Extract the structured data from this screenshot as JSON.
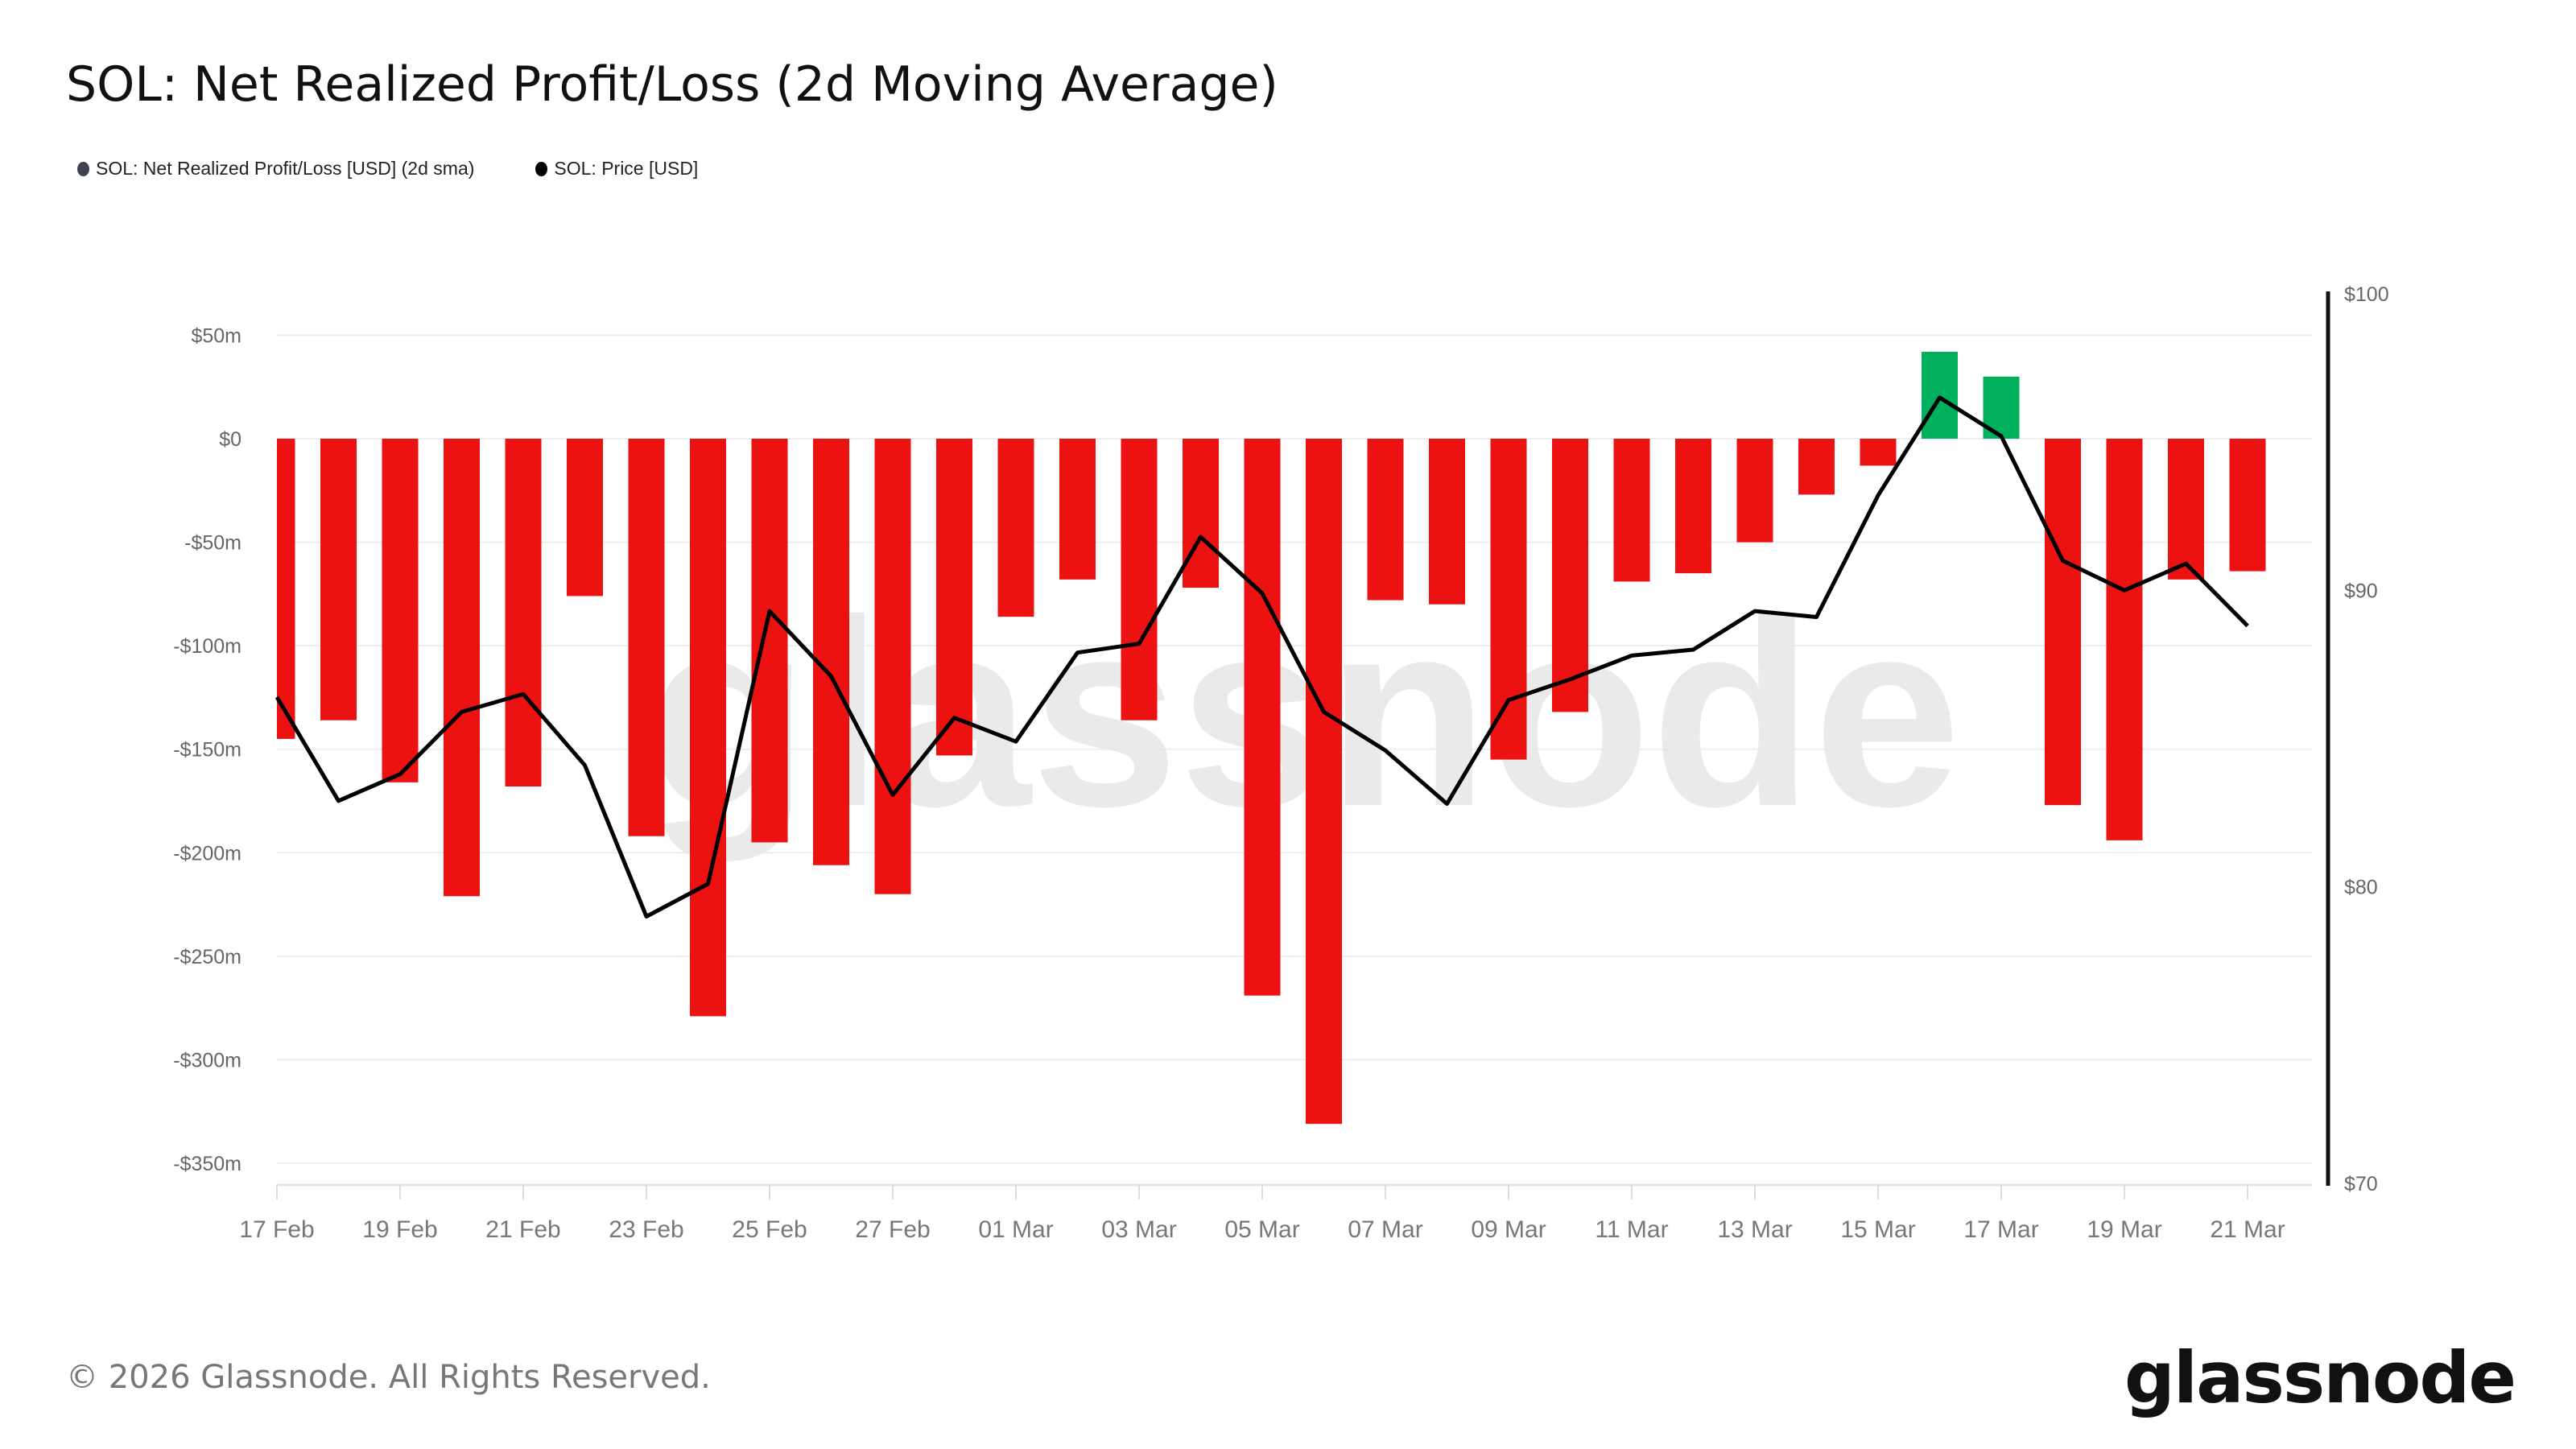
{
  "header": {
    "title": "SOL: Net Realized Profit/Loss (2d Moving Average)"
  },
  "legend": [
    {
      "label": "SOL: Net Realized Profit/Loss [USD] (2d sma)",
      "color": "#3f4350"
    },
    {
      "label": "SOL: Price [USD]",
      "color": "#000000"
    }
  ],
  "footer": {
    "copyright": "© 2026 Glassnode. All Rights Reserved.",
    "logo": "glassnode",
    "watermark": "glassnode"
  },
  "chart_data": {
    "type": "bar+line",
    "title": "SOL: Net Realized Profit/Loss (2d Moving Average)",
    "x": [
      "17 Feb",
      "18 Feb",
      "19 Feb",
      "20 Feb",
      "21 Feb",
      "22 Feb",
      "23 Feb",
      "24 Feb",
      "25 Feb",
      "26 Feb",
      "27 Feb",
      "28 Feb",
      "01 Mar",
      "02 Mar",
      "03 Mar",
      "04 Mar",
      "05 Mar",
      "06 Mar",
      "07 Mar",
      "08 Mar",
      "09 Mar",
      "10 Mar",
      "11 Mar",
      "12 Mar",
      "13 Mar",
      "14 Mar",
      "15 Mar",
      "16 Mar",
      "17 Mar",
      "18 Mar",
      "19 Mar",
      "20 Mar",
      "21 Mar"
    ],
    "x_tick_labels": [
      "17 Feb",
      "19 Feb",
      "21 Feb",
      "23 Feb",
      "25 Feb",
      "27 Feb",
      "01 Mar",
      "03 Mar",
      "05 Mar",
      "07 Mar",
      "09 Mar",
      "11 Mar",
      "13 Mar",
      "15 Mar",
      "17 Mar",
      "19 Mar",
      "21 Mar"
    ],
    "series": [
      {
        "name": "SOL: Net Realized Profit/Loss [USD] (2d sma)",
        "type": "bar",
        "axis": "left",
        "unit": "USD millions",
        "values": [
          -145,
          -136,
          -166,
          -221,
          -168,
          -76,
          -192,
          -279,
          -195,
          -206,
          -220,
          -153,
          -86,
          -68,
          -136,
          -72,
          -269,
          -331,
          -78,
          -80,
          -155,
          -132,
          -69,
          -65,
          -50,
          -27,
          -13,
          42,
          30,
          -177,
          -194,
          -68,
          -64
        ],
        "positive_color": "#00b05f",
        "negative_color": "#ec1212"
      },
      {
        "name": "SOL: Price [USD]",
        "type": "line",
        "axis": "right",
        "color": "#000000",
        "values": [
          86.4,
          82.9,
          83.8,
          85.9,
          86.5,
          84.1,
          79.0,
          80.1,
          89.3,
          87.1,
          83.1,
          85.7,
          84.9,
          87.9,
          88.2,
          91.8,
          89.9,
          85.9,
          84.6,
          82.8,
          86.3,
          87.0,
          87.8,
          88.0,
          89.3,
          89.1,
          93.2,
          96.5,
          95.2,
          91.0,
          90.0,
          90.9,
          88.8
        ]
      }
    ],
    "left_axis": {
      "ylim": [
        -360,
        50
      ],
      "ticks": [
        50,
        0,
        -50,
        -100,
        -150,
        -200,
        -250,
        -300,
        -350
      ],
      "tick_labels": [
        "$50m",
        "$0",
        "-$50m",
        "-$100m",
        "-$150m",
        "-$200m",
        "-$250m",
        "-$300m",
        "-$350m"
      ]
    },
    "right_axis": {
      "ylim": [
        70,
        100
      ],
      "ticks": [
        100,
        90,
        80,
        70
      ],
      "tick_labels": [
        "$100",
        "$90",
        "$80",
        "$70"
      ]
    },
    "grid": true,
    "legend_position": "top-left"
  }
}
